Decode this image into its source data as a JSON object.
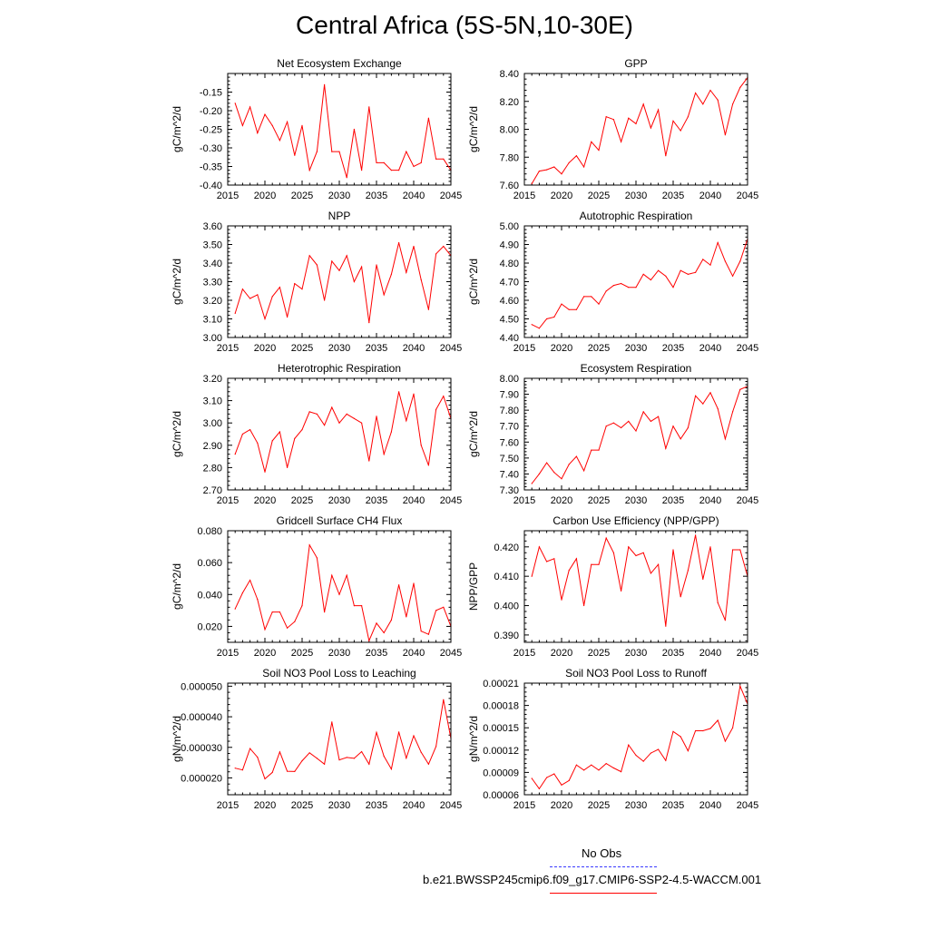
{
  "figure": {
    "title": "Central Africa (5S-5N,10-30E)"
  },
  "legend": {
    "obs_label": "No Obs",
    "model_label": "b.e21.BWSSP245cmip6.f09_g17.CMIP6-SSP2-4.5-WACCM.001",
    "obs_color": "#3a3aff",
    "model_color": "#ff0000"
  },
  "chart_data": [
    {
      "type": "line",
      "title": "Net Ecosystem Exchange",
      "ylabel": "gC/m^2/d",
      "xlim": [
        2015,
        2045
      ],
      "ylim": [
        -0.4,
        -0.1
      ],
      "yticks": [
        -0.4,
        -0.35,
        -0.3,
        -0.25,
        -0.2,
        -0.15
      ],
      "ytick_labels": [
        "-0.40",
        "-0.35",
        "-0.30",
        "-0.25",
        "-0.20",
        "-0.15"
      ],
      "xticks": [
        2015,
        2020,
        2025,
        2030,
        2035,
        2040,
        2045
      ],
      "x": [
        2016,
        2017,
        2018,
        2019,
        2020,
        2021,
        2022,
        2023,
        2024,
        2025,
        2026,
        2027,
        2028,
        2029,
        2030,
        2031,
        2032,
        2033,
        2034,
        2035,
        2036,
        2037,
        2038,
        2039,
        2040,
        2041,
        2042,
        2043,
        2044,
        2045
      ],
      "values": [
        -0.18,
        -0.24,
        -0.19,
        -0.26,
        -0.21,
        -0.24,
        -0.28,
        -0.23,
        -0.32,
        -0.24,
        -0.36,
        -0.31,
        -0.13,
        -0.31,
        -0.31,
        -0.38,
        -0.25,
        -0.36,
        -0.19,
        -0.34,
        -0.34,
        -0.36,
        -0.36,
        -0.31,
        -0.35,
        -0.34,
        -0.22,
        -0.33,
        -0.33,
        -0.36
      ],
      "color": "#ff0000"
    },
    {
      "type": "line",
      "title": "GPP",
      "ylabel": "gC/m^2/d",
      "xlim": [
        2015,
        2045
      ],
      "ylim": [
        7.6,
        8.4
      ],
      "yticks": [
        7.6,
        7.8,
        8.0,
        8.2,
        8.4
      ],
      "ytick_labels": [
        "7.60",
        "7.80",
        "8.00",
        "8.20",
        "8.40"
      ],
      "xticks": [
        2015,
        2020,
        2025,
        2030,
        2035,
        2040,
        2045
      ],
      "x": [
        2016,
        2017,
        2018,
        2019,
        2020,
        2021,
        2022,
        2023,
        2024,
        2025,
        2026,
        2027,
        2028,
        2029,
        2030,
        2031,
        2032,
        2033,
        2034,
        2035,
        2036,
        2037,
        2038,
        2039,
        2040,
        2041,
        2042,
        2043,
        2044,
        2045
      ],
      "values": [
        7.61,
        7.7,
        7.71,
        7.73,
        7.68,
        7.76,
        7.81,
        7.73,
        7.91,
        7.85,
        8.09,
        8.07,
        7.91,
        8.08,
        8.04,
        8.18,
        8.01,
        8.14,
        7.81,
        8.06,
        7.99,
        8.09,
        8.26,
        8.18,
        8.28,
        8.21,
        7.96,
        8.18,
        8.3,
        8.37
      ],
      "color": "#ff0000"
    },
    {
      "type": "line",
      "title": "NPP",
      "ylabel": "gC/m^2/d",
      "xlim": [
        2015,
        2045
      ],
      "ylim": [
        3.0,
        3.6
      ],
      "yticks": [
        3.0,
        3.1,
        3.2,
        3.3,
        3.4,
        3.5,
        3.6
      ],
      "ytick_labels": [
        "3.00",
        "3.10",
        "3.20",
        "3.30",
        "3.40",
        "3.50",
        "3.60"
      ],
      "xticks": [
        2015,
        2020,
        2025,
        2030,
        2035,
        2040,
        2045
      ],
      "x": [
        2016,
        2017,
        2018,
        2019,
        2020,
        2021,
        2022,
        2023,
        2024,
        2025,
        2026,
        2027,
        2028,
        2029,
        2030,
        2031,
        2032,
        2033,
        2034,
        2035,
        2036,
        2037,
        2038,
        2039,
        2040,
        2041,
        2042,
        2043,
        2044,
        2045
      ],
      "values": [
        3.13,
        3.26,
        3.21,
        3.23,
        3.1,
        3.22,
        3.27,
        3.11,
        3.29,
        3.26,
        3.44,
        3.39,
        3.2,
        3.41,
        3.36,
        3.44,
        3.3,
        3.38,
        3.08,
        3.39,
        3.23,
        3.34,
        3.51,
        3.35,
        3.49,
        3.31,
        3.15,
        3.45,
        3.49,
        3.44
      ],
      "color": "#ff0000"
    },
    {
      "type": "line",
      "title": "Autotrophic Respiration",
      "ylabel": "gC/m^2/d",
      "xlim": [
        2015,
        2045
      ],
      "ylim": [
        4.4,
        5.0
      ],
      "yticks": [
        4.4,
        4.5,
        4.6,
        4.7,
        4.8,
        4.9,
        5.0
      ],
      "ytick_labels": [
        "4.40",
        "4.50",
        "4.60",
        "4.70",
        "4.80",
        "4.90",
        "5.00"
      ],
      "xticks": [
        2015,
        2020,
        2025,
        2030,
        2035,
        2040,
        2045
      ],
      "x": [
        2016,
        2017,
        2018,
        2019,
        2020,
        2021,
        2022,
        2023,
        2024,
        2025,
        2026,
        2027,
        2028,
        2029,
        2030,
        2031,
        2032,
        2033,
        2034,
        2035,
        2036,
        2037,
        2038,
        2039,
        2040,
        2041,
        2042,
        2043,
        2044,
        2045
      ],
      "values": [
        4.47,
        4.45,
        4.5,
        4.51,
        4.58,
        4.55,
        4.55,
        4.62,
        4.62,
        4.58,
        4.65,
        4.68,
        4.69,
        4.67,
        4.67,
        4.74,
        4.71,
        4.76,
        4.73,
        4.67,
        4.76,
        4.74,
        4.75,
        4.82,
        4.79,
        4.91,
        4.81,
        4.73,
        4.81,
        4.93
      ],
      "color": "#ff0000"
    },
    {
      "type": "line",
      "title": "Heterotrophic Respiration",
      "ylabel": "gC/m^2/d",
      "xlim": [
        2015,
        2045
      ],
      "ylim": [
        2.7,
        3.2
      ],
      "yticks": [
        2.7,
        2.8,
        2.9,
        3.0,
        3.1,
        3.2
      ],
      "ytick_labels": [
        "2.70",
        "2.80",
        "2.90",
        "3.00",
        "3.10",
        "3.20"
      ],
      "xticks": [
        2015,
        2020,
        2025,
        2030,
        2035,
        2040,
        2045
      ],
      "x": [
        2016,
        2017,
        2018,
        2019,
        2020,
        2021,
        2022,
        2023,
        2024,
        2025,
        2026,
        2027,
        2028,
        2029,
        2030,
        2031,
        2032,
        2033,
        2034,
        2035,
        2036,
        2037,
        2038,
        2039,
        2040,
        2041,
        2042,
        2043,
        2044,
        2045
      ],
      "values": [
        2.86,
        2.95,
        2.97,
        2.91,
        2.78,
        2.92,
        2.96,
        2.8,
        2.93,
        2.97,
        3.05,
        3.04,
        2.99,
        3.07,
        3.0,
        3.04,
        3.02,
        3.0,
        2.83,
        3.03,
        2.86,
        2.96,
        3.14,
        3.01,
        3.13,
        2.9,
        2.81,
        3.06,
        3.12,
        3.02
      ],
      "color": "#ff0000"
    },
    {
      "type": "line",
      "title": "Ecosystem Respiration",
      "ylabel": "gC/m^2/d",
      "xlim": [
        2015,
        2045
      ],
      "ylim": [
        7.3,
        8.0
      ],
      "yticks": [
        7.3,
        7.4,
        7.5,
        7.6,
        7.7,
        7.8,
        7.9,
        8.0
      ],
      "ytick_labels": [
        "7.30",
        "7.40",
        "7.50",
        "7.60",
        "7.70",
        "7.80",
        "7.90",
        "8.00"
      ],
      "xticks": [
        2015,
        2020,
        2025,
        2030,
        2035,
        2040,
        2045
      ],
      "x": [
        2016,
        2017,
        2018,
        2019,
        2020,
        2021,
        2022,
        2023,
        2024,
        2025,
        2026,
        2027,
        2028,
        2029,
        2030,
        2031,
        2032,
        2033,
        2034,
        2035,
        2036,
        2037,
        2038,
        2039,
        2040,
        2041,
        2042,
        2043,
        2044,
        2045
      ],
      "values": [
        7.34,
        7.4,
        7.47,
        7.41,
        7.37,
        7.46,
        7.51,
        7.42,
        7.55,
        7.55,
        7.7,
        7.72,
        7.69,
        7.73,
        7.67,
        7.79,
        7.73,
        7.76,
        7.56,
        7.7,
        7.62,
        7.69,
        7.89,
        7.84,
        7.91,
        7.81,
        7.62,
        7.79,
        7.93,
        7.95
      ],
      "color": "#ff0000"
    },
    {
      "type": "line",
      "title": "Gridcell Surface CH4 Flux",
      "ylabel": "gC/m^2/d",
      "xlim": [
        2015,
        2045
      ],
      "ylim": [
        0.01,
        0.08
      ],
      "yticks": [
        0.02,
        0.04,
        0.06,
        0.08
      ],
      "ytick_labels": [
        "0.020",
        "0.040",
        "0.060",
        "0.080"
      ],
      "xticks": [
        2015,
        2020,
        2025,
        2030,
        2035,
        2040,
        2045
      ],
      "x": [
        2016,
        2017,
        2018,
        2019,
        2020,
        2021,
        2022,
        2023,
        2024,
        2025,
        2026,
        2027,
        2028,
        2029,
        2030,
        2031,
        2032,
        2033,
        2034,
        2035,
        2036,
        2037,
        2038,
        2039,
        2040,
        2041,
        2042,
        2043,
        2044,
        2045
      ],
      "values": [
        0.031,
        0.041,
        0.049,
        0.037,
        0.018,
        0.029,
        0.029,
        0.019,
        0.023,
        0.033,
        0.071,
        0.063,
        0.029,
        0.052,
        0.04,
        0.052,
        0.033,
        0.033,
        0.011,
        0.022,
        0.016,
        0.024,
        0.046,
        0.026,
        0.047,
        0.017,
        0.015,
        0.03,
        0.032,
        0.02
      ],
      "color": "#ff0000"
    },
    {
      "type": "line",
      "title": "Carbon Use Efficiency (NPP/GPP)",
      "ylabel": "NPP/GPP",
      "xlim": [
        2015,
        2045
      ],
      "ylim": [
        0.3875,
        0.4255
      ],
      "yticks": [
        0.39,
        0.4,
        0.41,
        0.42
      ],
      "ytick_labels": [
        "0.390",
        "0.400",
        "0.410",
        "0.420"
      ],
      "xticks": [
        2015,
        2020,
        2025,
        2030,
        2035,
        2040,
        2045
      ],
      "x": [
        2016,
        2017,
        2018,
        2019,
        2020,
        2021,
        2022,
        2023,
        2024,
        2025,
        2026,
        2027,
        2028,
        2029,
        2030,
        2031,
        2032,
        2033,
        2034,
        2035,
        2036,
        2037,
        2038,
        2039,
        2040,
        2041,
        2042,
        2043,
        2044,
        2045
      ],
      "values": [
        0.41,
        0.42,
        0.415,
        0.416,
        0.402,
        0.412,
        0.416,
        0.4,
        0.414,
        0.414,
        0.423,
        0.418,
        0.405,
        0.42,
        0.417,
        0.418,
        0.411,
        0.414,
        0.393,
        0.419,
        0.403,
        0.412,
        0.424,
        0.409,
        0.42,
        0.401,
        0.395,
        0.419,
        0.419,
        0.41
      ],
      "color": "#ff0000"
    },
    {
      "type": "line",
      "title": "Soil NO3 Pool Loss to Leaching",
      "ylabel": "gN/m^2/d",
      "xlim": [
        2015,
        2045
      ],
      "ylim": [
        1.45e-05,
        5.1e-05
      ],
      "yticks": [
        2e-05,
        3e-05,
        4e-05,
        5e-05
      ],
      "ytick_labels": [
        "0.000020",
        "0.000030",
        "0.000040",
        "0.000050"
      ],
      "xticks": [
        2015,
        2020,
        2025,
        2030,
        2035,
        2040,
        2045
      ],
      "x": [
        2016,
        2017,
        2018,
        2019,
        2020,
        2021,
        2022,
        2023,
        2024,
        2025,
        2026,
        2027,
        2028,
        2029,
        2030,
        2031,
        2032,
        2033,
        2034,
        2035,
        2036,
        2037,
        2038,
        2039,
        2040,
        2041,
        2042,
        2043,
        2044,
        2045
      ],
      "values": [
        2.32e-05,
        2.26e-05,
        2.96e-05,
        2.68e-05,
        1.97e-05,
        2.18e-05,
        2.85e-05,
        2.22e-05,
        2.21e-05,
        2.56e-05,
        2.82e-05,
        2.64e-05,
        2.45e-05,
        3.83e-05,
        2.59e-05,
        2.67e-05,
        2.64e-05,
        2.86e-05,
        2.45e-05,
        3.49e-05,
        2.71e-05,
        2.29e-05,
        3.5e-05,
        2.65e-05,
        3.38e-05,
        2.84e-05,
        2.45e-05,
        3.03e-05,
        4.56e-05,
        3.29e-05
      ],
      "color": "#ff0000"
    },
    {
      "type": "line",
      "title": "Soil NO3 Pool Loss to Runoff",
      "ylabel": "gN/m^2/d",
      "xlim": [
        2015,
        2045
      ],
      "ylim": [
        6e-05,
        0.00021
      ],
      "yticks": [
        6e-05,
        9e-05,
        0.00012,
        0.00015,
        0.00018,
        0.00021
      ],
      "ytick_labels": [
        "0.00006",
        "0.00009",
        "0.00012",
        "0.00015",
        "0.00018",
        "0.00021"
      ],
      "xticks": [
        2015,
        2020,
        2025,
        2030,
        2035,
        2040,
        2045
      ],
      "x": [
        2016,
        2017,
        2018,
        2019,
        2020,
        2021,
        2022,
        2023,
        2024,
        2025,
        2026,
        2027,
        2028,
        2029,
        2030,
        2031,
        2032,
        2033,
        2034,
        2035,
        2036,
        2037,
        2038,
        2039,
        2040,
        2041,
        2042,
        2043,
        2044,
        2045
      ],
      "values": [
        8.2e-05,
        6.8e-05,
        8.3e-05,
        8.8e-05,
        7.3e-05,
        7.9e-05,
        0.0001,
        9.3e-05,
        0.0001,
        9.3e-05,
        0.000102,
        9.6e-05,
        9.1e-05,
        0.000127,
        0.000113,
        0.000105,
        0.000116,
        0.000121,
        0.000106,
        0.000145,
        0.000138,
        0.000119,
        0.000146,
        0.000146,
        0.000149,
        0.00016,
        0.000132,
        0.00015,
        0.000206,
        0.000182
      ],
      "color": "#ff0000"
    }
  ]
}
